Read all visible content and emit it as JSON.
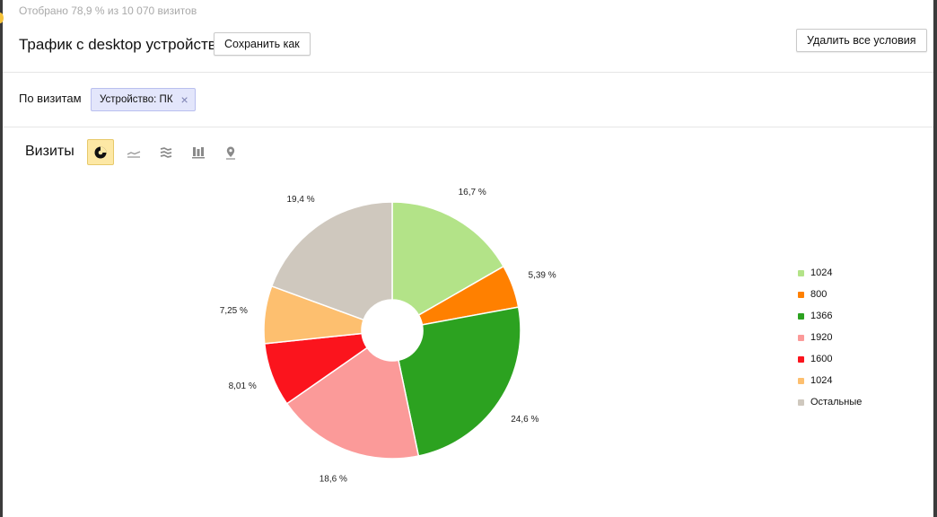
{
  "header": {
    "sample_info": "Отобрано 78,9 % из 10 070 визитов",
    "title": "Трафик с desktop устройств",
    "save_label": "Сохранить как",
    "clear_label": "Удалить все условия"
  },
  "filters": {
    "label": "По визитам",
    "chip_label": "Устройство: ПК",
    "chip_close": "×"
  },
  "chart_section": {
    "title": "Визиты",
    "view_buttons": [
      {
        "icon": "pie-chart-icon",
        "active": true
      },
      {
        "icon": "line-chart-icon",
        "active": false
      },
      {
        "icon": "area-chart-icon",
        "active": false
      },
      {
        "icon": "bar-chart-icon",
        "active": false
      },
      {
        "icon": "map-icon",
        "active": false
      }
    ]
  },
  "chart_data": {
    "type": "pie",
    "donut": true,
    "title": "",
    "slices": [
      {
        "name": "1024",
        "value": 16.7,
        "label": "16,7 %",
        "color": "#b3e388"
      },
      {
        "name": "800",
        "value": 5.39,
        "label": "5,39 %",
        "color": "#ff8000"
      },
      {
        "name": "1366",
        "value": 24.6,
        "label": "24,6 %",
        "color": "#2ca220"
      },
      {
        "name": "1920",
        "value": 18.6,
        "label": "18,6 %",
        "color": "#fb9a99"
      },
      {
        "name": "1600",
        "value": 8.01,
        "label": "8,01 %",
        "color": "#fb141d"
      },
      {
        "name": "1024",
        "value": 7.25,
        "label": "7,25 %",
        "color": "#fdbf6f"
      },
      {
        "name": "Остальные",
        "value": 19.4,
        "label": "19,4 %",
        "color": "#cfc8be"
      }
    ],
    "legend_position": "right"
  }
}
